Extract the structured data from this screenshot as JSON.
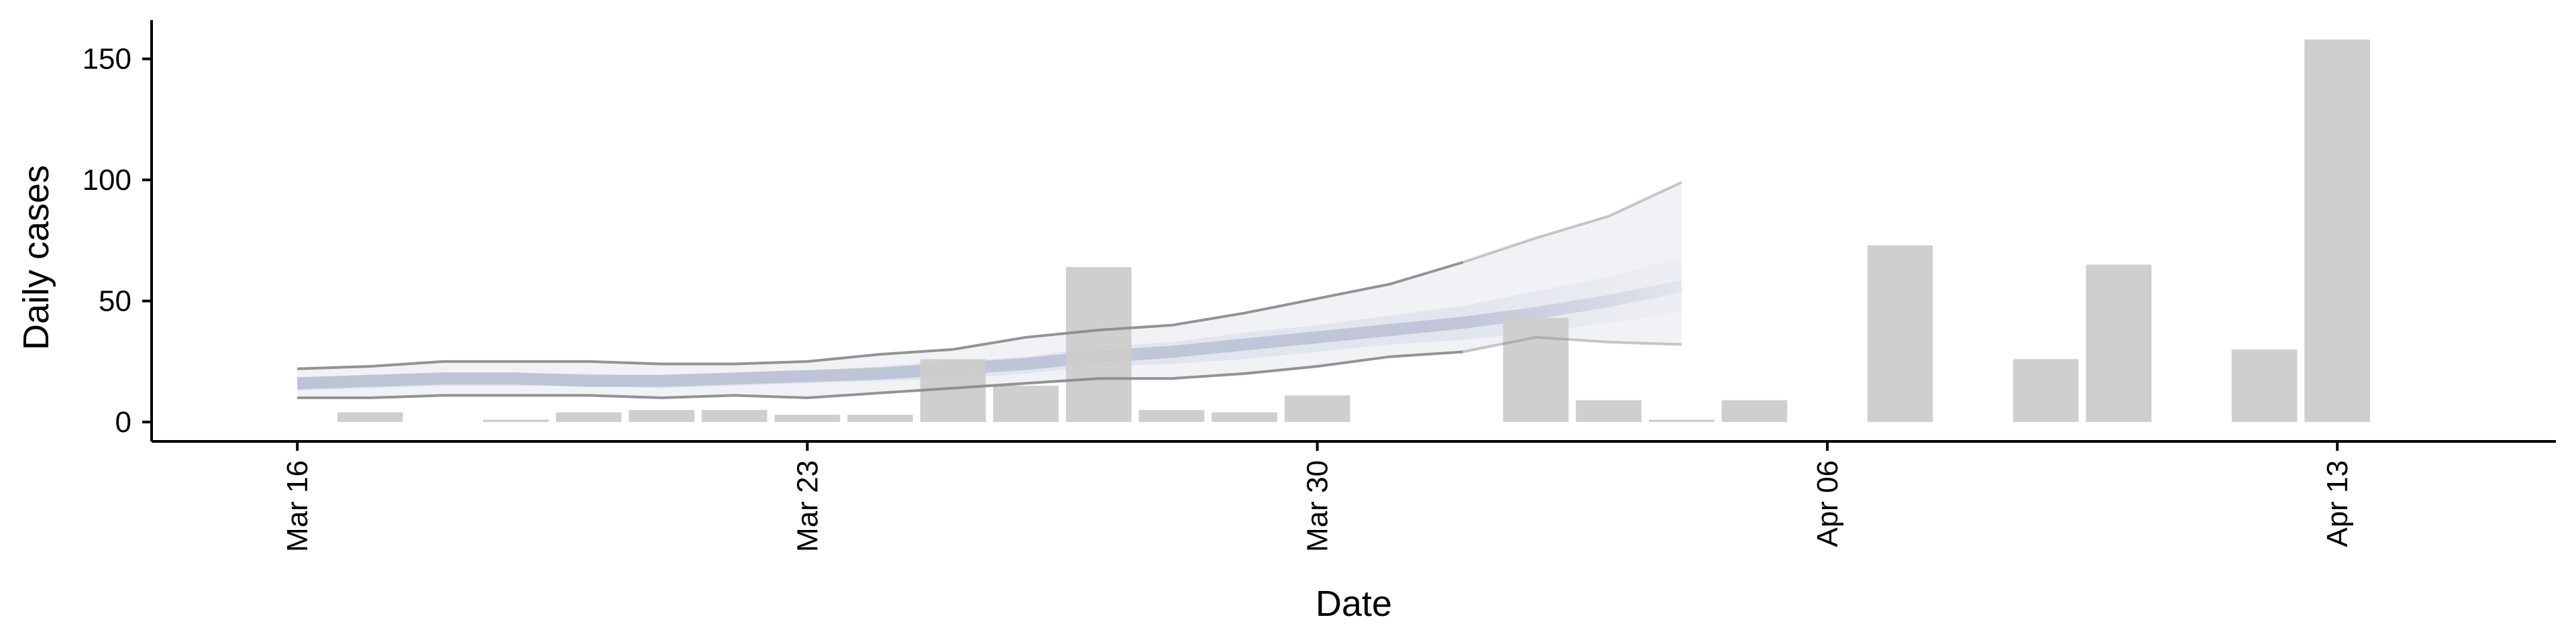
{
  "chart_data": {
    "type": "bar",
    "title": "",
    "xlabel": "Date",
    "ylabel": "Daily cases",
    "x_range": [
      "2020-03-14",
      "2020-04-16"
    ],
    "ylim": [
      -8,
      166
    ],
    "grid": false,
    "legend": "none",
    "x_ticks": [
      {
        "date": "2020-03-16",
        "label": "Mar 16"
      },
      {
        "date": "2020-03-23",
        "label": "Mar 23"
      },
      {
        "date": "2020-03-30",
        "label": "Mar 30"
      },
      {
        "date": "2020-04-06",
        "label": "Apr 06"
      },
      {
        "date": "2020-04-13",
        "label": "Apr 13"
      }
    ],
    "y_ticks": [
      {
        "value": 0,
        "label": "0"
      },
      {
        "value": 50,
        "label": "50"
      },
      {
        "value": 100,
        "label": "100"
      },
      {
        "value": 150,
        "label": "150"
      }
    ],
    "bars": {
      "name": "Daily cases",
      "color": "#cccccc",
      "dates": [
        "2020-03-17",
        "2020-03-19",
        "2020-03-20",
        "2020-03-21",
        "2020-03-22",
        "2020-03-23",
        "2020-03-24",
        "2020-03-25",
        "2020-03-26",
        "2020-03-27",
        "2020-03-28",
        "2020-03-29",
        "2020-03-30",
        "2020-04-02",
        "2020-04-03",
        "2020-04-04",
        "2020-04-05",
        "2020-04-07",
        "2020-04-09",
        "2020-04-10",
        "2020-04-12",
        "2020-04-13"
      ],
      "values": [
        4,
        1,
        4,
        5,
        5,
        3,
        3,
        26,
        15,
        64,
        5,
        4,
        11,
        43,
        9,
        1,
        9,
        73,
        26,
        65,
        30,
        158
      ]
    },
    "estimate": {
      "band_color": "#bcc3d6",
      "line_color": "#888888",
      "dates": [
        "2020-03-16",
        "2020-03-17",
        "2020-03-18",
        "2020-03-19",
        "2020-03-20",
        "2020-03-21",
        "2020-03-22",
        "2020-03-23",
        "2020-03-24",
        "2020-03-25",
        "2020-03-26",
        "2020-03-27",
        "2020-03-28",
        "2020-03-29",
        "2020-03-30",
        "2020-03-31",
        "2020-04-01",
        "2020-04-02",
        "2020-04-03",
        "2020-04-04"
      ],
      "median": [
        16,
        17,
        18,
        18,
        17,
        17,
        18,
        19,
        20,
        22,
        24,
        27,
        29,
        32,
        35,
        38,
        41,
        45,
        50,
        56
      ],
      "inner_lower": [
        13,
        14,
        15,
        15,
        15,
        14,
        15,
        16,
        17,
        18,
        20,
        23,
        24,
        26,
        29,
        32,
        34,
        37,
        41,
        45
      ],
      "inner_upper": [
        18,
        19,
        20,
        20,
        20,
        19,
        20,
        21,
        23,
        25,
        27,
        31,
        33,
        37,
        40,
        44,
        48,
        54,
        60,
        68
      ],
      "lower": [
        10,
        10,
        11,
        11,
        11,
        10,
        11,
        10,
        12,
        14,
        16,
        18,
        18,
        20,
        23,
        27,
        29,
        35,
        33,
        32
      ],
      "upper": [
        22,
        23,
        25,
        25,
        25,
        24,
        24,
        25,
        28,
        30,
        35,
        38,
        40,
        45,
        51,
        57,
        66,
        76,
        85,
        99
      ]
    },
    "forecast_fade_start": "2020-04-01"
  }
}
